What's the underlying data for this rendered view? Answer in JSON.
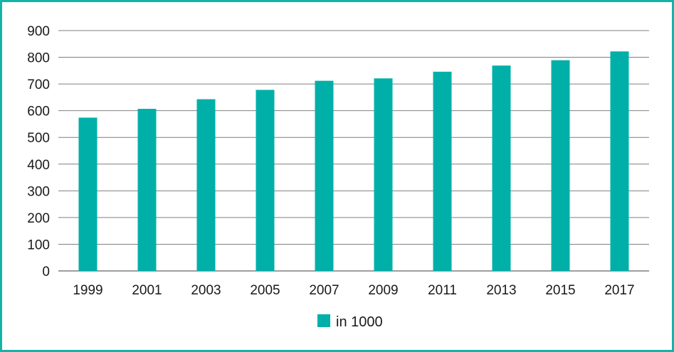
{
  "colors": {
    "bar": "#00b0a8",
    "frame": "#14b3a8",
    "grid": "#7f7f7f",
    "text": "#1a1a1a"
  },
  "chart_data": {
    "type": "bar",
    "categories": [
      "1999",
      "2001",
      "2003",
      "2005",
      "2007",
      "2009",
      "2011",
      "2013",
      "2015",
      "2017"
    ],
    "series": [
      {
        "name": "in 1000",
        "values": [
          574,
          607,
          643,
          678,
          712,
          721,
          746,
          769,
          789,
          822
        ]
      }
    ],
    "y_ticks": [
      "0",
      "100",
      "200",
      "300",
      "400",
      "500",
      "600",
      "700",
      "800",
      "900"
    ],
    "ylim": [
      0,
      900
    ],
    "grid": true,
    "legend_position": "bottom-center"
  }
}
